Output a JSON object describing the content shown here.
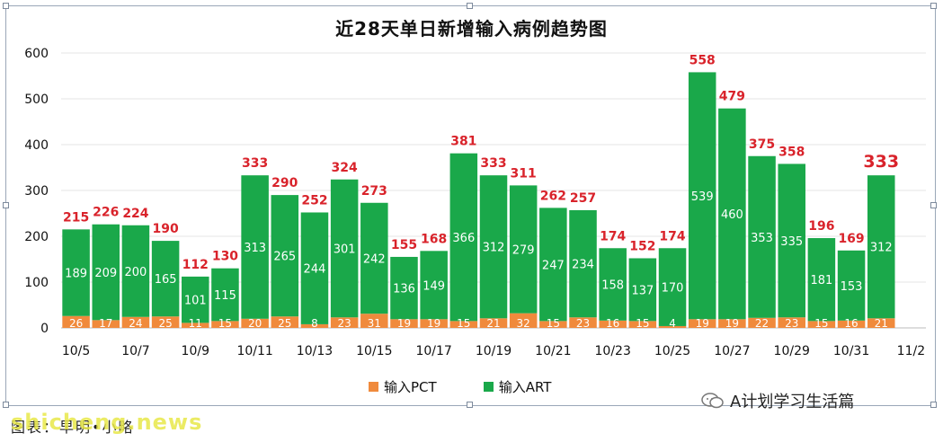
{
  "title": "近28天单日新增输入病例趋势图",
  "legend": {
    "pct": "输入PCT",
    "art": "输入ART"
  },
  "watermark": "A计划学习生活篇",
  "source_credit": "图表：早明•小略",
  "site_logo": "shicheng.news",
  "colors": {
    "pct": "#f08a3c",
    "art": "#1aa84a",
    "total_label": "#d9232b"
  },
  "chart_data": {
    "type": "bar",
    "stacked": true,
    "title": "近28天单日新增输入病例趋势图",
    "categories": [
      "10/5",
      "10/6",
      "10/7",
      "10/8",
      "10/9",
      "10/10",
      "10/11",
      "10/12",
      "10/13",
      "10/14",
      "10/15",
      "10/16",
      "10/17",
      "10/18",
      "10/19",
      "10/20",
      "10/21",
      "10/22",
      "10/23",
      "10/24",
      "10/25",
      "10/26",
      "10/27",
      "10/28",
      "10/29",
      "10/30",
      "10/31",
      "11/1",
      "11/2"
    ],
    "x_tick_labels": [
      "10/5",
      "10/7",
      "10/9",
      "10/11",
      "10/13",
      "10/15",
      "10/17",
      "10/19",
      "10/21",
      "10/23",
      "10/25",
      "10/27",
      "10/29",
      "10/31",
      "11/2"
    ],
    "series": [
      {
        "name": "输入PCT",
        "values": [
          26,
          17,
          24,
          25,
          11,
          15,
          20,
          25,
          8,
          23,
          31,
          19,
          19,
          15,
          21,
          32,
          15,
          23,
          16,
          15,
          4,
          19,
          19,
          22,
          23,
          15,
          16,
          21,
          null
        ]
      },
      {
        "name": "输入ART",
        "values": [
          189,
          209,
          200,
          165,
          101,
          115,
          313,
          265,
          244,
          301,
          242,
          136,
          149,
          366,
          312,
          279,
          247,
          234,
          158,
          137,
          170,
          539,
          460,
          353,
          335,
          181,
          153,
          312,
          null
        ]
      }
    ],
    "totals": [
      215,
      226,
      224,
      190,
      112,
      130,
      333,
      290,
      252,
      324,
      273,
      155,
      168,
      381,
      333,
      311,
      262,
      257,
      174,
      152,
      174,
      558,
      479,
      375,
      358,
      196,
      169,
      333,
      null
    ],
    "ylim": [
      0,
      600
    ],
    "yticks": [
      0,
      100,
      200,
      300,
      400,
      500,
      600
    ],
    "grid": true,
    "legend_position": "bottom"
  }
}
